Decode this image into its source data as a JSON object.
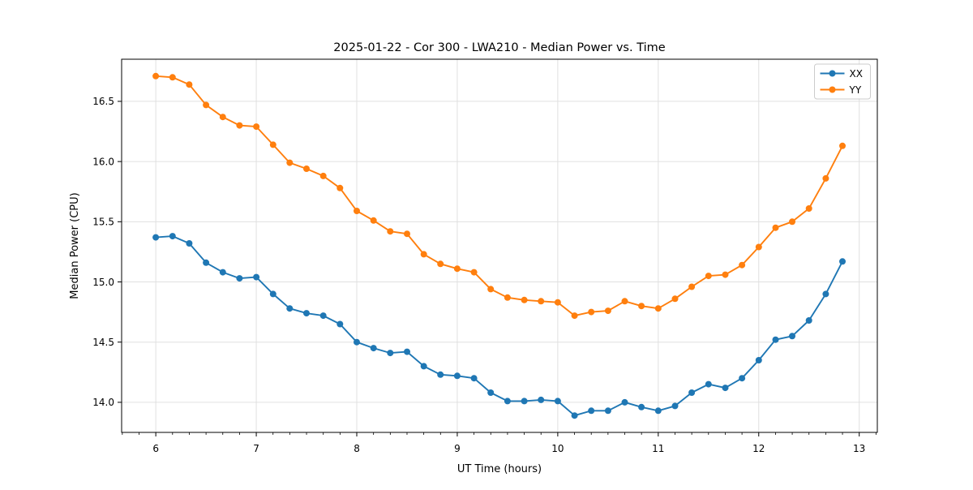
{
  "chart_data": {
    "type": "line",
    "title": "2025-01-22 - Cor 300 - LWA210 - Median Power vs. Time",
    "xlabel": "UT Time (hours)",
    "ylabel": "Median Power (CPU)",
    "xlim": [
      5.66,
      13.18
    ],
    "ylim": [
      13.75,
      16.85
    ],
    "x_major_ticks": [
      6,
      7,
      8,
      9,
      10,
      11,
      12,
      13
    ],
    "y_major_ticks": [
      14.0,
      14.5,
      15.0,
      15.5,
      16.0,
      16.5
    ],
    "x_minor_tick_interval": 0.1667,
    "grid": true,
    "grid_color": "#e0e0e0",
    "spine_color": "#000000",
    "background_color": "#ffffff",
    "legend_position": "upper right",
    "x": [
      6.0,
      6.167,
      6.333,
      6.5,
      6.667,
      6.833,
      7.0,
      7.167,
      7.333,
      7.5,
      7.667,
      7.833,
      8.0,
      8.167,
      8.333,
      8.5,
      8.667,
      8.833,
      9.0,
      9.167,
      9.333,
      9.5,
      9.667,
      9.833,
      10.0,
      10.167,
      10.333,
      10.5,
      10.667,
      10.833,
      11.0,
      11.167,
      11.333,
      11.5,
      11.667,
      11.833,
      12.0,
      12.167,
      12.333,
      12.5,
      12.667,
      12.833
    ],
    "series": [
      {
        "name": "XX",
        "color": "#1f77b4",
        "marker": "circle",
        "values": [
          15.37,
          15.38,
          15.32,
          15.16,
          15.08,
          15.03,
          15.04,
          14.9,
          14.78,
          14.74,
          14.72,
          14.65,
          14.5,
          14.45,
          14.41,
          14.42,
          14.3,
          14.23,
          14.22,
          14.2,
          14.08,
          14.01,
          14.01,
          14.02,
          14.01,
          13.89,
          13.93,
          13.93,
          14.0,
          13.96,
          13.93,
          13.97,
          14.08,
          14.15,
          14.12,
          14.2,
          14.35,
          14.52,
          14.55,
          14.68,
          14.9,
          15.17
        ]
      },
      {
        "name": "YY",
        "color": "#ff7f0e",
        "marker": "circle",
        "values": [
          16.71,
          16.7,
          16.64,
          16.47,
          16.37,
          16.3,
          16.29,
          16.14,
          15.99,
          15.94,
          15.88,
          15.78,
          15.59,
          15.51,
          15.42,
          15.4,
          15.23,
          15.15,
          15.11,
          15.08,
          14.94,
          14.87,
          14.85,
          14.84,
          14.83,
          14.72,
          14.75,
          14.76,
          14.84,
          14.8,
          14.78,
          14.86,
          14.96,
          15.05,
          15.06,
          15.14,
          15.29,
          15.45,
          15.5,
          15.61,
          15.86,
          16.13
        ]
      }
    ]
  }
}
